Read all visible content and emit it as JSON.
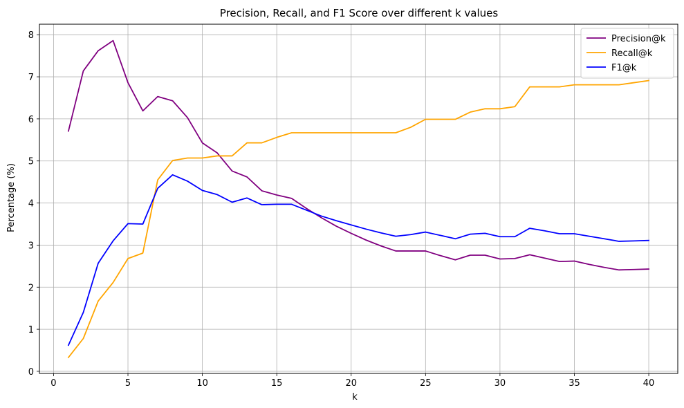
{
  "chart_data": {
    "type": "line",
    "title": "Precision, Recall, and F1 Score over different k values",
    "xlabel": "k",
    "ylabel": "Percentage (%)",
    "xlim": [
      -0.95,
      41.95
    ],
    "ylim": [
      -0.05,
      8.25
    ],
    "xticks": [
      0,
      5,
      10,
      15,
      20,
      25,
      30,
      35,
      40
    ],
    "yticks": [
      0,
      1,
      2,
      3,
      4,
      5,
      6,
      7,
      8
    ],
    "grid": true,
    "legend": "top-right",
    "x": [
      1,
      2,
      3,
      4,
      5,
      6,
      7,
      8,
      9,
      10,
      11,
      12,
      13,
      14,
      15,
      16,
      17,
      18,
      19,
      20,
      21,
      22,
      23,
      24,
      25,
      26,
      27,
      28,
      29,
      30,
      31,
      32,
      33,
      34,
      35,
      36,
      37,
      38,
      39,
      40
    ],
    "series": [
      {
        "name": "Precision@k",
        "color": "#800080",
        "values": [
          5.71,
          7.14,
          7.62,
          7.86,
          6.86,
          6.19,
          6.53,
          6.43,
          6.03,
          5.43,
          5.19,
          4.76,
          4.62,
          4.29,
          4.19,
          4.11,
          3.87,
          3.65,
          3.45,
          3.28,
          3.12,
          2.98,
          2.86,
          2.86,
          2.86,
          2.75,
          2.65,
          2.76,
          2.76,
          2.67,
          2.68,
          2.77,
          2.69,
          2.61,
          2.62,
          2.54,
          2.47,
          2.41,
          2.42,
          2.43
        ]
      },
      {
        "name": "Recall@k",
        "color": "#FFA500",
        "values": [
          0.33,
          0.78,
          1.67,
          2.11,
          2.68,
          2.81,
          4.55,
          5.01,
          5.07,
          5.07,
          5.12,
          5.12,
          5.43,
          5.43,
          5.56,
          5.67,
          5.67,
          5.67,
          5.67,
          5.67,
          5.67,
          5.67,
          5.67,
          5.8,
          5.99,
          5.99,
          5.99,
          6.16,
          6.24,
          6.24,
          6.29,
          6.76,
          6.76,
          6.76,
          6.81,
          6.81,
          6.81,
          6.81,
          6.86,
          6.91
        ]
      },
      {
        "name": "F1@k",
        "color": "#0000FF",
        "values": [
          0.62,
          1.4,
          2.57,
          3.1,
          3.51,
          3.5,
          4.35,
          4.67,
          4.52,
          4.3,
          4.2,
          4.02,
          4.12,
          3.96,
          3.97,
          3.97,
          3.83,
          3.69,
          3.58,
          3.48,
          3.38,
          3.29,
          3.21,
          3.25,
          3.31,
          3.23,
          3.15,
          3.26,
          3.28,
          3.2,
          3.2,
          3.4,
          3.34,
          3.27,
          3.27,
          3.21,
          3.15,
          3.09,
          3.1,
          3.11
        ]
      }
    ]
  }
}
